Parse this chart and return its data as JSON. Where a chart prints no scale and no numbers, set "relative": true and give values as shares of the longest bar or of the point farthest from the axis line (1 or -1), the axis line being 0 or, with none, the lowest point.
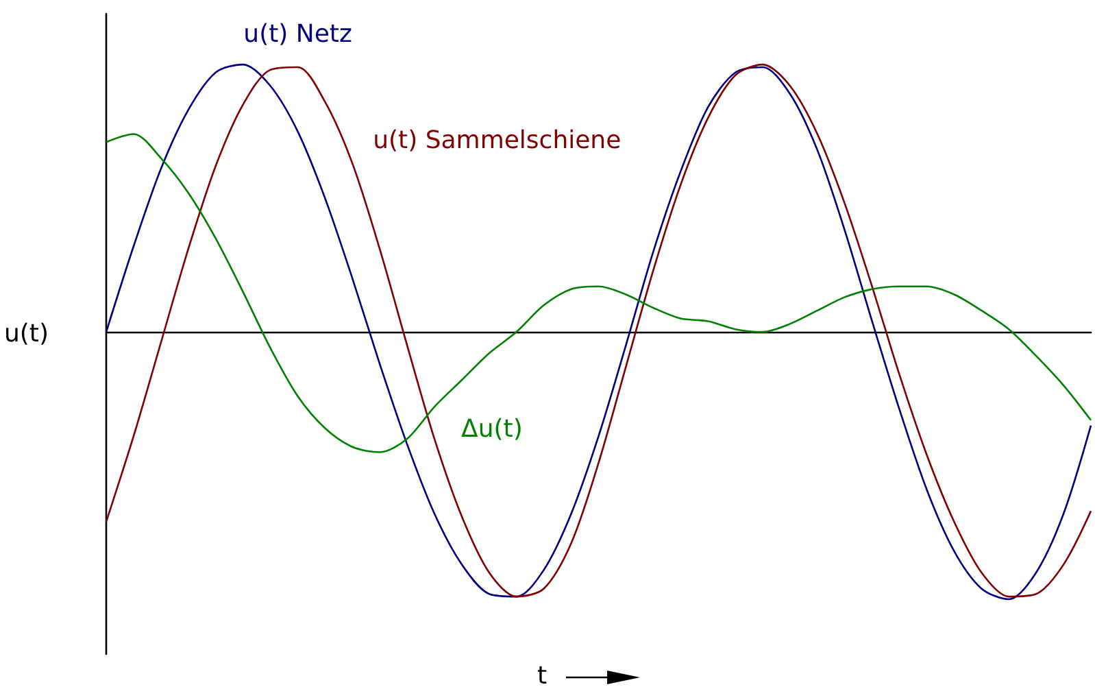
{
  "chart_data": {
    "type": "line",
    "relative": true,
    "xlabel": "t",
    "ylabel": "u(t)",
    "categories": [
      null,
      null,
      null,
      null,
      null,
      null,
      null,
      null,
      null,
      null,
      null,
      null,
      null,
      null,
      null,
      null,
      null,
      null,
      null,
      null,
      null,
      null,
      null,
      null,
      null,
      null,
      null,
      null,
      null,
      null,
      null,
      null,
      null,
      null,
      null,
      null,
      null
    ],
    "series": [
      {
        "name": "u(t) Netz",
        "color": "#000080",
        "values": [
          0,
          0.32,
          0.61,
          0.83,
          0.97,
          1,
          0.92,
          0.75,
          0.5,
          0.2,
          -0.12,
          -0.42,
          -0.68,
          -0.87,
          -0.98,
          -0.99,
          -0.89,
          -0.68,
          -0.39,
          -0.05,
          0.3,
          0.6,
          0.84,
          0.97,
          0.99,
          0.89,
          0.68,
          0.38,
          0.04,
          -0.29,
          -0.59,
          -0.82,
          -0.96,
          -1,
          -0.9,
          -0.68,
          -0.35
        ]
      },
      {
        "name": "u(t) Sammelschiene",
        "color": "#800000",
        "values": [
          -0.71,
          -0.39,
          -0.04,
          0.31,
          0.62,
          0.85,
          0.98,
          0.99,
          0.86,
          0.63,
          0.31,
          -0.05,
          -0.4,
          -0.69,
          -0.9,
          -0.99,
          -0.96,
          -0.79,
          -0.49,
          -0.13,
          0.23,
          0.55,
          0.8,
          0.96,
          1,
          0.92,
          0.74,
          0.48,
          0.17,
          -0.16,
          -0.46,
          -0.71,
          -0.9,
          -0.99,
          -0.98,
          -0.87,
          -0.67
        ]
      },
      {
        "name": "Δu(t)",
        "color": "#008000",
        "values": [
          0.71,
          0.74,
          0.65,
          0.52,
          0.35,
          0.15,
          -0.06,
          -0.24,
          -0.36,
          -0.43,
          -0.45,
          -0.4,
          -0.28,
          -0.18,
          -0.08,
          0,
          0.1,
          0.16,
          0.17,
          0.14,
          0.09,
          0.05,
          0.04,
          0.01,
          0,
          0.03,
          0.08,
          0.13,
          0.16,
          0.17,
          0.17,
          0.14,
          0.08,
          0.01,
          -0.09,
          -0.2,
          -0.33
        ]
      }
    ],
    "grid": false,
    "legend": false,
    "marker": "none",
    "line_style": "solid"
  }
}
